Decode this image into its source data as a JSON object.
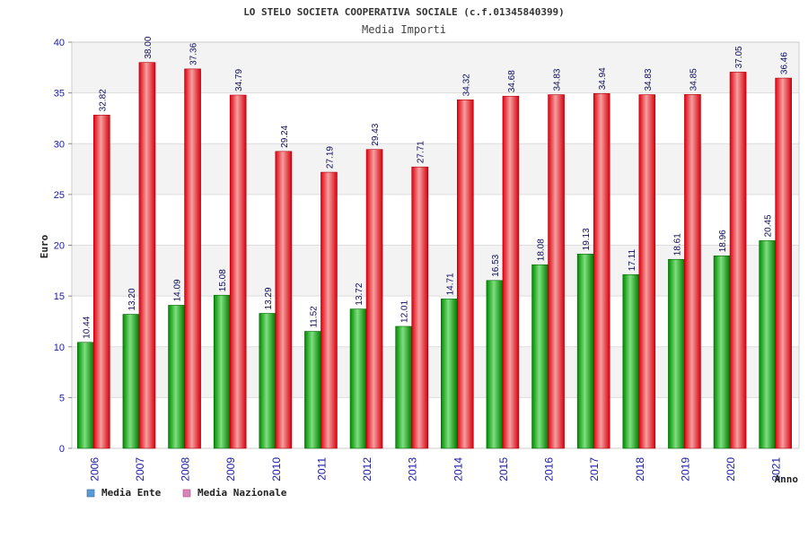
{
  "chart_data": {
    "type": "bar",
    "title": "LO STELO SOCIETA COOPERATIVA SOCIALE (c.f.01345840399)",
    "subtitle": "Media Importi",
    "xlabel": "Anno",
    "ylabel": "Euro",
    "ylim": [
      0,
      40
    ],
    "yticks": [
      "0",
      "5",
      "10",
      "15",
      "20",
      "25",
      "30",
      "35",
      "40"
    ],
    "categories": [
      "2006",
      "2007",
      "2008",
      "2009",
      "2010",
      "2011",
      "2012",
      "2013",
      "2014",
      "2015",
      "2016",
      "2017",
      "2018",
      "2019",
      "2020",
      "2021"
    ],
    "series": [
      {
        "name": "Media Ente",
        "legend_color": "#5b9bd5",
        "color_light": "#7ee07e",
        "color_dark": "#008a00",
        "values": [
          10.44,
          13.2,
          14.09,
          15.08,
          13.29,
          11.52,
          13.72,
          12.01,
          14.71,
          16.53,
          18.08,
          19.13,
          17.11,
          18.61,
          18.96,
          20.45
        ],
        "labels": [
          "10.44",
          "13.20",
          "14.09",
          "15.08",
          "13.29",
          "11.52",
          "13.72",
          "12.01",
          "14.71",
          "16.53",
          "18.08",
          "19.13",
          "17.11",
          "18.61",
          "18.96",
          "20.45"
        ]
      },
      {
        "name": "Media Nazionale",
        "legend_color": "#d886b8",
        "color_light": "#f5a0a0",
        "color_dark": "#e00010",
        "values": [
          32.82,
          38.0,
          37.36,
          34.79,
          29.24,
          27.19,
          29.43,
          27.71,
          34.32,
          34.68,
          34.83,
          34.94,
          34.83,
          34.85,
          37.05,
          36.46
        ],
        "labels": [
          "32.82",
          "38.00",
          "37.36",
          "34.79",
          "29.24",
          "27.19",
          "29.43",
          "27.71",
          "34.32",
          "34.68",
          "34.83",
          "34.94",
          "34.83",
          "34.85",
          "37.05",
          "36.46"
        ]
      }
    ],
    "grid": true,
    "legend": "bottom-left"
  }
}
